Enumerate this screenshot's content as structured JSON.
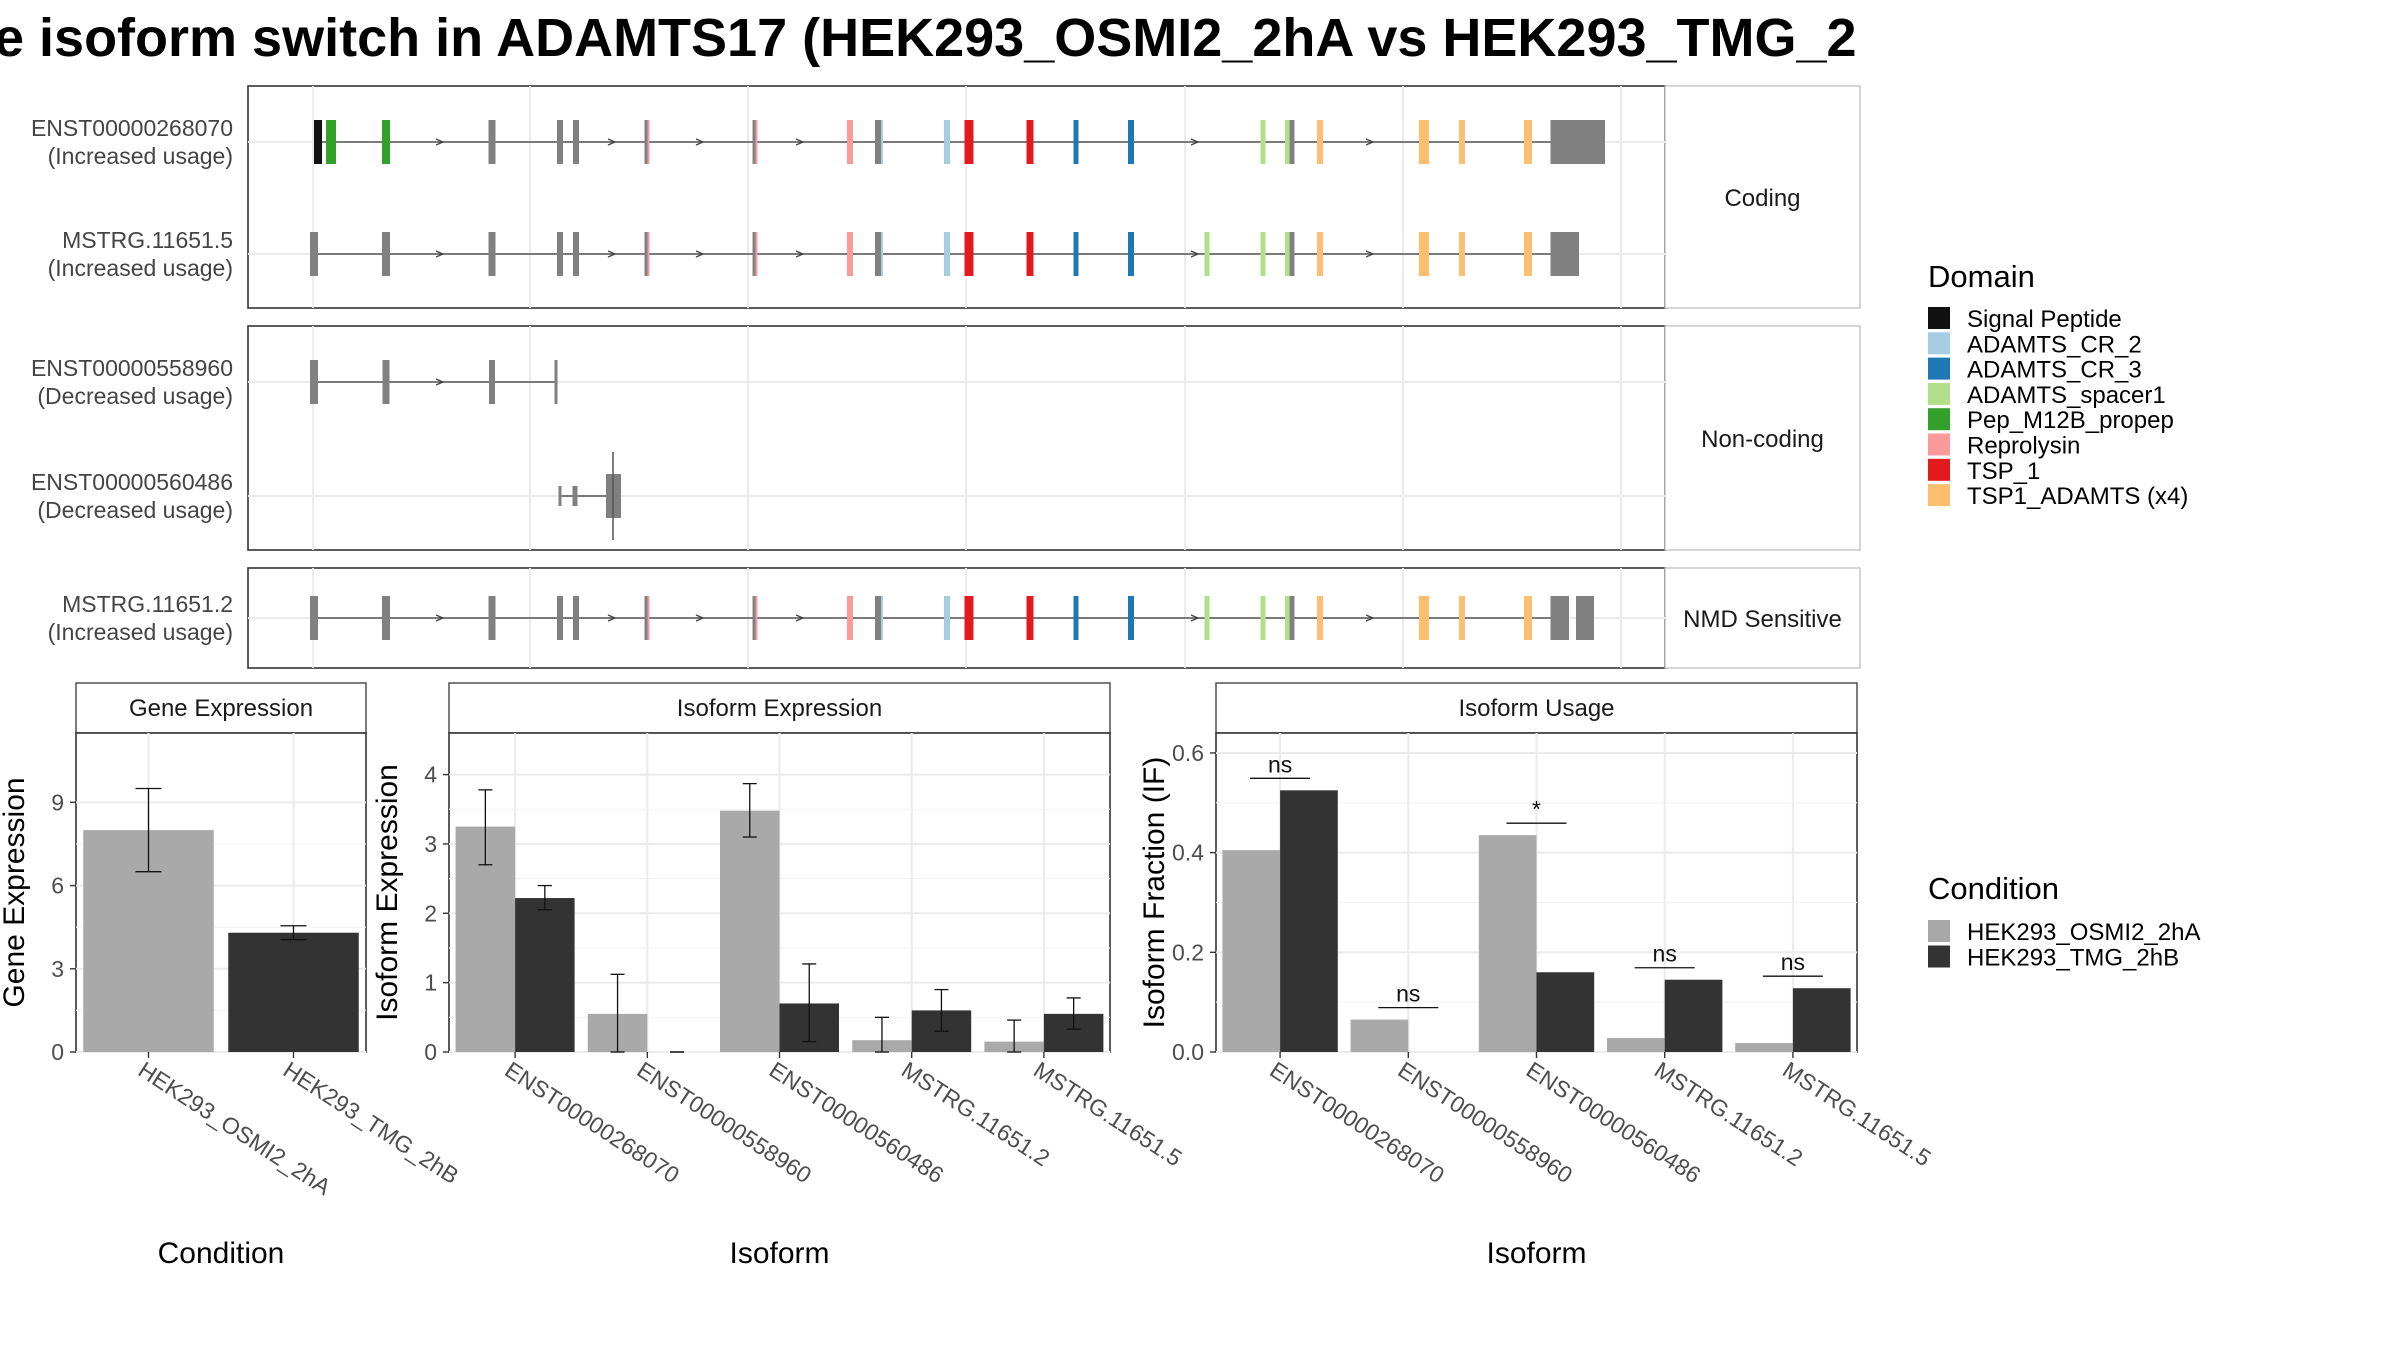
{
  "title": "e isoform switch in ADAMTS17 (HEK293_OSMI2_2hA vs HEK293_TMG_2",
  "colors": {
    "domains": {
      "Signal Peptide": "#111111",
      "ADAMTS_CR_2": "#a6cee3",
      "ADAMTS_CR_3": "#1f78b4",
      "ADAMTS_spacer1": "#b2df8a",
      "Pep_M12B_propep": "#33a02c",
      "Reprolysin": "#fb9a99",
      "TSP_1": "#e31a1c",
      "TSP1_ADAMTS (x4)": "#fdbf6f"
    },
    "exon": "#808080",
    "cond1": "#a9a9a9",
    "cond2": "#333333"
  },
  "structure": {
    "groups": [
      {
        "label": "Coding",
        "isoforms": [
          {
            "id": "ENST00000268070",
            "usage": "(Increased usage)"
          },
          {
            "id": "MSTRG.11651.5",
            "usage": "(Increased usage)"
          }
        ]
      },
      {
        "label": "Non-coding",
        "isoforms": [
          {
            "id": "ENST00000558960",
            "usage": "(Decreased usage)"
          },
          {
            "id": "ENST00000560486",
            "usage": "(Decreased usage)"
          }
        ]
      },
      {
        "label": "NMD Sensitive",
        "isoforms": [
          {
            "id": "MSTRG.11651.2",
            "usage": "(Increased usage)"
          }
        ]
      }
    ]
  },
  "legend_domain": {
    "title": "Domain",
    "items": [
      "Signal Peptide",
      "ADAMTS_CR_2",
      "ADAMTS_CR_3",
      "ADAMTS_spacer1",
      "Pep_M12B_propep",
      "Reprolysin",
      "TSP_1",
      "TSP1_ADAMTS (x4)"
    ]
  },
  "legend_condition": {
    "title": "Condition",
    "items": [
      "HEK293_OSMI2_2hA",
      "HEK293_TMG_2hB"
    ]
  },
  "chart_data": [
    {
      "type": "bar",
      "title": "Gene Expression",
      "xlabel": "Condition",
      "ylabel": "Gene Expression",
      "ylim": [
        0,
        11.5
      ],
      "yticks": [
        0,
        3,
        6,
        9
      ],
      "categories": [
        "HEK293_OSMI2_2hA",
        "HEK293_TMG_2hB"
      ],
      "values": [
        8.0,
        4.3
      ],
      "errors": [
        [
          6.5,
          9.5
        ],
        [
          4.05,
          4.55
        ]
      ]
    },
    {
      "type": "bar",
      "title": "Isoform Expression",
      "xlabel": "Isoform",
      "ylabel": "Isoform Expression",
      "ylim": [
        0,
        4.6
      ],
      "yticks": [
        0,
        1,
        2,
        3,
        4
      ],
      "categories": [
        "ENST00000268070",
        "ENST00000558960",
        "ENST00000560486",
        "MSTRG.11651.2",
        "MSTRG.11651.5"
      ],
      "series": [
        {
          "name": "HEK293_OSMI2_2hA",
          "values": [
            3.25,
            0.55,
            3.48,
            0.17,
            0.15
          ],
          "errors": [
            [
              2.7,
              3.78
            ],
            [
              0.0,
              1.12
            ],
            [
              3.1,
              3.87
            ],
            [
              0.0,
              0.5
            ],
            [
              0.0,
              0.46
            ]
          ]
        },
        {
          "name": "HEK293_TMG_2hB",
          "values": [
            2.22,
            0.0,
            0.7,
            0.6,
            0.55
          ],
          "errors": [
            [
              2.05,
              2.4
            ],
            [
              0.0,
              0.0
            ],
            [
              0.15,
              1.27
            ],
            [
              0.3,
              0.9
            ],
            [
              0.33,
              0.78
            ]
          ]
        }
      ]
    },
    {
      "type": "bar",
      "title": "Isoform Usage",
      "xlabel": "Isoform",
      "ylabel": "Isoform Fraction (IF)",
      "ylim": [
        0,
        0.64
      ],
      "yticks": [
        0.0,
        0.2,
        0.4,
        0.6
      ],
      "ytick_labels": [
        "0.0",
        "0.2",
        "0.4",
        "0.6"
      ],
      "categories": [
        "ENST00000268070",
        "ENST00000558960",
        "ENST00000560486",
        "MSTRG.11651.2",
        "MSTRG.11651.5"
      ],
      "series": [
        {
          "name": "HEK293_OSMI2_2hA",
          "values": [
            0.405,
            0.065,
            0.435,
            0.028,
            0.018
          ]
        },
        {
          "name": "HEK293_TMG_2hB",
          "values": [
            0.525,
            0.0,
            0.16,
            0.145,
            0.128
          ]
        }
      ],
      "significance": [
        "ns",
        "ns",
        "*",
        "ns",
        "ns"
      ]
    }
  ]
}
